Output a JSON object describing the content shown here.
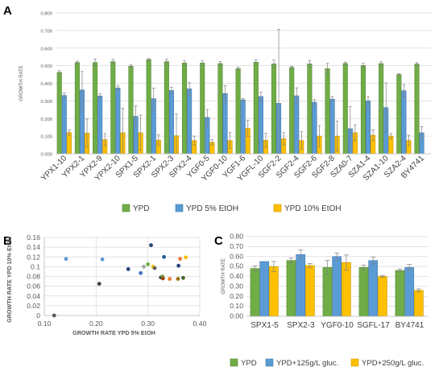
{
  "panel_labels": {
    "a": "A",
    "b": "B",
    "c": "C"
  },
  "chart_data": [
    {
      "id": "A",
      "type": "bar",
      "ylabel": "GROWTH RATE",
      "ylim": [
        0,
        0.8
      ],
      "yticks": [
        "0.000",
        "0.100",
        "0.200",
        "0.300",
        "0.400",
        "0.500",
        "0.600",
        "0.700",
        "0.800"
      ],
      "categories": [
        "YPX1-10",
        "YPX2-1",
        "YPX2-9",
        "YPX2-10",
        "SPX1-5",
        "SPX2-1",
        "SPX2-3",
        "SPX2-4",
        "YGF0-5",
        "YGF0-10",
        "YGF1-6",
        "YGFL-10",
        "SGF2-2",
        "SGF2-4",
        "SGF2-6",
        "SGF2-8",
        "SZA0-7",
        "SZA1-4",
        "SZA1-10",
        "SZA2-4",
        "BY4741"
      ],
      "series": [
        {
          "name": "YPD",
          "color": "#70ad47",
          "values": [
            0.462,
            0.518,
            0.518,
            0.523,
            0.497,
            0.535,
            0.523,
            0.515,
            0.515,
            0.512,
            0.483,
            0.52,
            0.51,
            0.49,
            0.51,
            0.483,
            0.513,
            0.501,
            0.512,
            0.45,
            0.509
          ],
          "errors": [
            0.01,
            0.008,
            0.02,
            0.013,
            0.01,
            0.005,
            0.015,
            0.012,
            0.012,
            0.012,
            0.008,
            0.012,
            0.022,
            0.006,
            0.02,
            0.03,
            0.008,
            0.012,
            0.01,
            0.005,
            0.008
          ]
        },
        {
          "name": "YPD 5% EtOH",
          "color": "#5b9bd5",
          "values": [
            0.331,
            0.362,
            0.328,
            0.373,
            0.212,
            0.313,
            0.359,
            0.368,
            0.206,
            0.342,
            0.306,
            0.325,
            0.286,
            0.329,
            0.292,
            0.31,
            0.142,
            0.3,
            0.262,
            0.358,
            0.119
          ],
          "errors": [
            0.015,
            0.105,
            0.012,
            0.012,
            0.06,
            0.06,
            0.018,
            0.035,
            0.045,
            0.045,
            0.008,
            0.025,
            0.42,
            0.045,
            0.015,
            0.015,
            0.125,
            0.025,
            0.14,
            0.035,
            0.035
          ]
        },
        {
          "name": "YPD 10% EtOH",
          "color": "#ffc000",
          "values": [
            0.12,
            0.117,
            0.08,
            0.119,
            0.119,
            0.077,
            0.102,
            0.075,
            0.065,
            0.075,
            0.144,
            0.076,
            0.085,
            0.075,
            0.1,
            0.1,
            0.119,
            0.105,
            0.1,
            0.075,
            0.0
          ],
          "errors": [
            0.015,
            0.08,
            0.035,
            0.14,
            0.1,
            0.03,
            0.125,
            0.025,
            0.015,
            0.045,
            0.045,
            0.04,
            0.035,
            0.05,
            0.06,
            0.085,
            0.045,
            0.03,
            0.015,
            0.03,
            0.0
          ]
        }
      ],
      "legend": "bottom",
      "grid": true
    },
    {
      "id": "B",
      "type": "scatter",
      "xlabel": "GROWTH RATE YPD 5% EtOH",
      "ylabel": "GROWTH RATE YPD 10% EtOH",
      "xlim": [
        0.1,
        0.4
      ],
      "ylim": [
        0,
        0.16
      ],
      "xticks": [
        "0.10",
        "0.20",
        "0.30",
        "0.40"
      ],
      "yticks": [
        "0",
        "0.02",
        "0.04",
        "0.06",
        "0.08",
        "0.1",
        "0.12",
        "0.14",
        "0.16"
      ],
      "points": [
        {
          "x": 0.119,
          "y": 0.0,
          "color": "#595959"
        },
        {
          "x": 0.142,
          "y": 0.116,
          "color": "#5b9bd5"
        },
        {
          "x": 0.206,
          "y": 0.065,
          "color": "#404040"
        },
        {
          "x": 0.212,
          "y": 0.115,
          "color": "#5b9bd5"
        },
        {
          "x": 0.262,
          "y": 0.095,
          "color": "#264478"
        },
        {
          "x": 0.286,
          "y": 0.087,
          "color": "#4472c4"
        },
        {
          "x": 0.292,
          "y": 0.1,
          "color": "#a5a5a5"
        },
        {
          "x": 0.3,
          "y": 0.105,
          "color": "#70ad47"
        },
        {
          "x": 0.306,
          "y": 0.144,
          "color": "#264478"
        },
        {
          "x": 0.31,
          "y": 0.1,
          "color": "#ffc000"
        },
        {
          "x": 0.313,
          "y": 0.097,
          "color": "#636363"
        },
        {
          "x": 0.325,
          "y": 0.078,
          "color": "#404040"
        },
        {
          "x": 0.328,
          "y": 0.08,
          "color": "#70ad47"
        },
        {
          "x": 0.329,
          "y": 0.076,
          "color": "#9e480e"
        },
        {
          "x": 0.331,
          "y": 0.12,
          "color": "#255e91"
        },
        {
          "x": 0.342,
          "y": 0.075,
          "color": "#ed7d31"
        },
        {
          "x": 0.358,
          "y": 0.075,
          "color": "#997300"
        },
        {
          "x": 0.359,
          "y": 0.102,
          "color": "#264478"
        },
        {
          "x": 0.362,
          "y": 0.116,
          "color": "#ed7d31"
        },
        {
          "x": 0.368,
          "y": 0.077,
          "color": "#43682b"
        },
        {
          "x": 0.373,
          "y": 0.119,
          "color": "#ffc000"
        }
      ]
    },
    {
      "id": "C",
      "type": "bar",
      "ylabel": "GROWTH RATE",
      "ylim": [
        0,
        0.8
      ],
      "yticks": [
        "0.00",
        "0.10",
        "0.20",
        "0.30",
        "0.40",
        "0.50",
        "0.60",
        "0.70",
        "0.80"
      ],
      "categories": [
        "SPX1-5",
        "SPX2-3",
        "YGF0-10",
        "SGFL-17",
        "BY4741"
      ],
      "series": [
        {
          "name": "YPD",
          "color": "#70ad47",
          "values": [
            0.48,
            0.56,
            0.49,
            0.49,
            0.46
          ],
          "errors": [
            0.025,
            0.025,
            0.07,
            0.025,
            0.015
          ]
        },
        {
          "name": "YPD+125g/L gluc.",
          "color": "#5b9bd5",
          "values": [
            0.55,
            0.62,
            0.6,
            0.56,
            0.49
          ],
          "errors": [
            0.0,
            0.045,
            0.035,
            0.035,
            0.03
          ]
        },
        {
          "name": "YPD+250g/L gluc.",
          "color": "#ffc000",
          "values": [
            0.5,
            0.51,
            0.54,
            0.4,
            0.26
          ],
          "errors": [
            0.05,
            0.02,
            0.075,
            0.01,
            0.015
          ]
        }
      ],
      "legend": "bottom",
      "grid": true
    }
  ]
}
